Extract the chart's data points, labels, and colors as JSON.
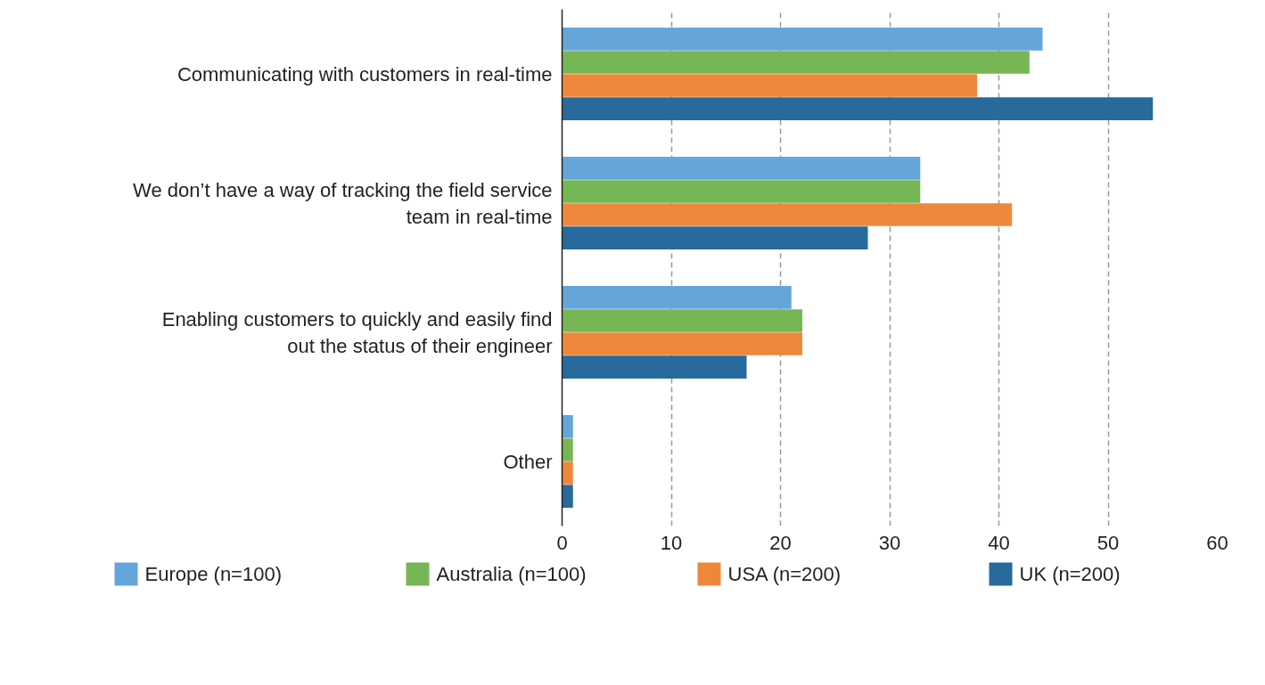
{
  "chart_data": {
    "type": "bar",
    "orientation": "horizontal",
    "categories": [
      "Communicating with customers in real-time",
      "We don’t have a way of tracking the field service\nteam in real-time",
      "Enabling customers to quickly and easily find\nout the status of their engineer",
      "Other"
    ],
    "series": [
      {
        "name": "Europe (n=100)",
        "color": "#66a5da",
        "values": [
          44.0,
          32.8,
          21.0,
          1.0
        ]
      },
      {
        "name": "Australia (n=100)",
        "color": "#77b654",
        "values": [
          42.8,
          32.8,
          22.0,
          1.0
        ]
      },
      {
        "name": "USA (n=200)",
        "color": "#ef873b",
        "values": [
          38.0,
          41.2,
          22.0,
          1.0
        ]
      },
      {
        "name": "UK (n=200)",
        "color": "#276a9b",
        "values": [
          54.1,
          28.0,
          16.9,
          1.0
        ]
      }
    ],
    "xlim": [
      0,
      60
    ],
    "xticks": [
      0,
      10,
      20,
      30,
      40,
      50,
      60
    ],
    "grid": "x",
    "legend": "bottom"
  }
}
